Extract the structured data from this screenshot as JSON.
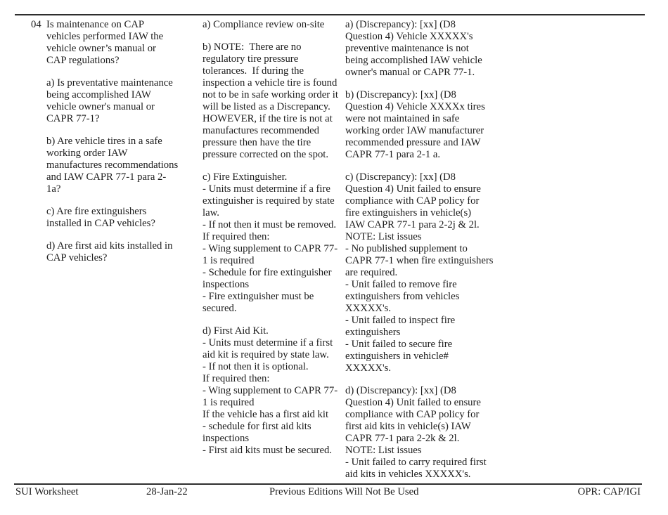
{
  "document": {
    "colors": {
      "text": "#1c1c1c",
      "rule": "#2e2e2e",
      "background": "#ffffff"
    },
    "row": {
      "number": "04",
      "question": {
        "paragraphs": [
          [
            "Is maintenance on CAP",
            "vehicles performed IAW the",
            "vehicle owner’s manual or",
            "CAP regulations?"
          ],
          [
            "a) Is preventative maintenance",
            "being accomplished IAW",
            "vehicle owner's manual or",
            "CAPR 77-1?"
          ],
          [
            "b) Are vehicle tires in a safe",
            "working order IAW",
            "manufactures recommendations",
            "and IAW CAPR 77-1 para 2-",
            "1a?"
          ],
          [
            "c) Are fire extinguishers",
            "installed in CAP vehicles?"
          ],
          [
            "d) Are first aid kits installed in",
            "CAP vehicles?"
          ]
        ]
      },
      "guidance": {
        "paragraphs": [
          [
            "a) Compliance review on-site"
          ],
          [
            "b) NOTE:  There are no",
            "regulatory tire pressure",
            "tolerances.  If during the",
            "inspection a vehicle tire is found",
            "not to be in safe working order it",
            "will be listed as a Discrepancy.",
            "HOWEVER, if the tire is not at",
            "manufactures recommended",
            "pressure then have the tire",
            "pressure corrected on the spot."
          ],
          [
            "c) Fire Extinguisher.",
            "- Units must determine if a fire",
            "extinguisher is required by state",
            "law.",
            "- If not then it must be removed.",
            "If required then:",
            "- Wing supplement to CAPR 77-",
            "1 is required",
            "- Schedule for fire extinguisher",
            "inspections",
            "- Fire extinguisher must be",
            "secured."
          ],
          [
            "d) First Aid Kit.",
            "- Units must determine if a first",
            "aid kit is required by state law.",
            "- If not then it is optional.",
            "If required then:",
            "- Wing supplement to CAPR 77-",
            "1 is required",
            "If the vehicle has a first aid kit",
            "- schedule for first aid kits",
            "inspections",
            "- First aid kits must be secured."
          ]
        ]
      },
      "discrepancies": {
        "paragraphs": [
          [
            "a) (Discrepancy): [xx] (D8",
            "Question 4) Vehicle XXXXX's",
            "preventive maintenance is not",
            "being accomplished IAW vehicle",
            "owner's manual or CAPR 77-1."
          ],
          [
            "b) (Discrepancy): [xx] (D8",
            "Question 4) Vehicle XXXXx tires",
            "were not maintained in safe",
            "working order IAW manufacturer",
            "recommended pressure and IAW",
            "CAPR 77-1 para 2-1 a."
          ],
          [
            "c) (Discrepancy): [xx] (D8",
            "Question 4) Unit failed to ensure",
            "compliance with CAP policy for",
            "fire extinguishers in vehicle(s)",
            "IAW CAPR 77-1 para 2-2j & 2l.",
            "NOTE: List issues",
            "- No published supplement to",
            "CAPR 77-1 when fire extinguishers",
            "are required.",
            "- Unit failed to remove fire",
            "extinguishers from vehicles",
            "XXXXX's.",
            "- Unit failed to inspect fire",
            "extinguishers",
            "- Unit failed to secure fire",
            "extinguishers in vehicle#",
            "XXXXX's."
          ],
          [
            "d) (Discrepancy): [xx] (D8",
            "Question 4) Unit failed to ensure",
            "compliance with CAP policy for",
            "first aid kits in vehicle(s) IAW",
            "CAPR 77-1 para 2-2k & 2l.",
            "NOTE: List issues",
            "- Unit failed to carry required first",
            "aid kits in vehicles XXXXX's."
          ]
        ]
      }
    },
    "footer": {
      "title": "SUI Worksheet",
      "date": "28-Jan-22",
      "notice": "Previous Editions Will Not Be Used",
      "opr": "OPR: CAP/IGI"
    }
  }
}
